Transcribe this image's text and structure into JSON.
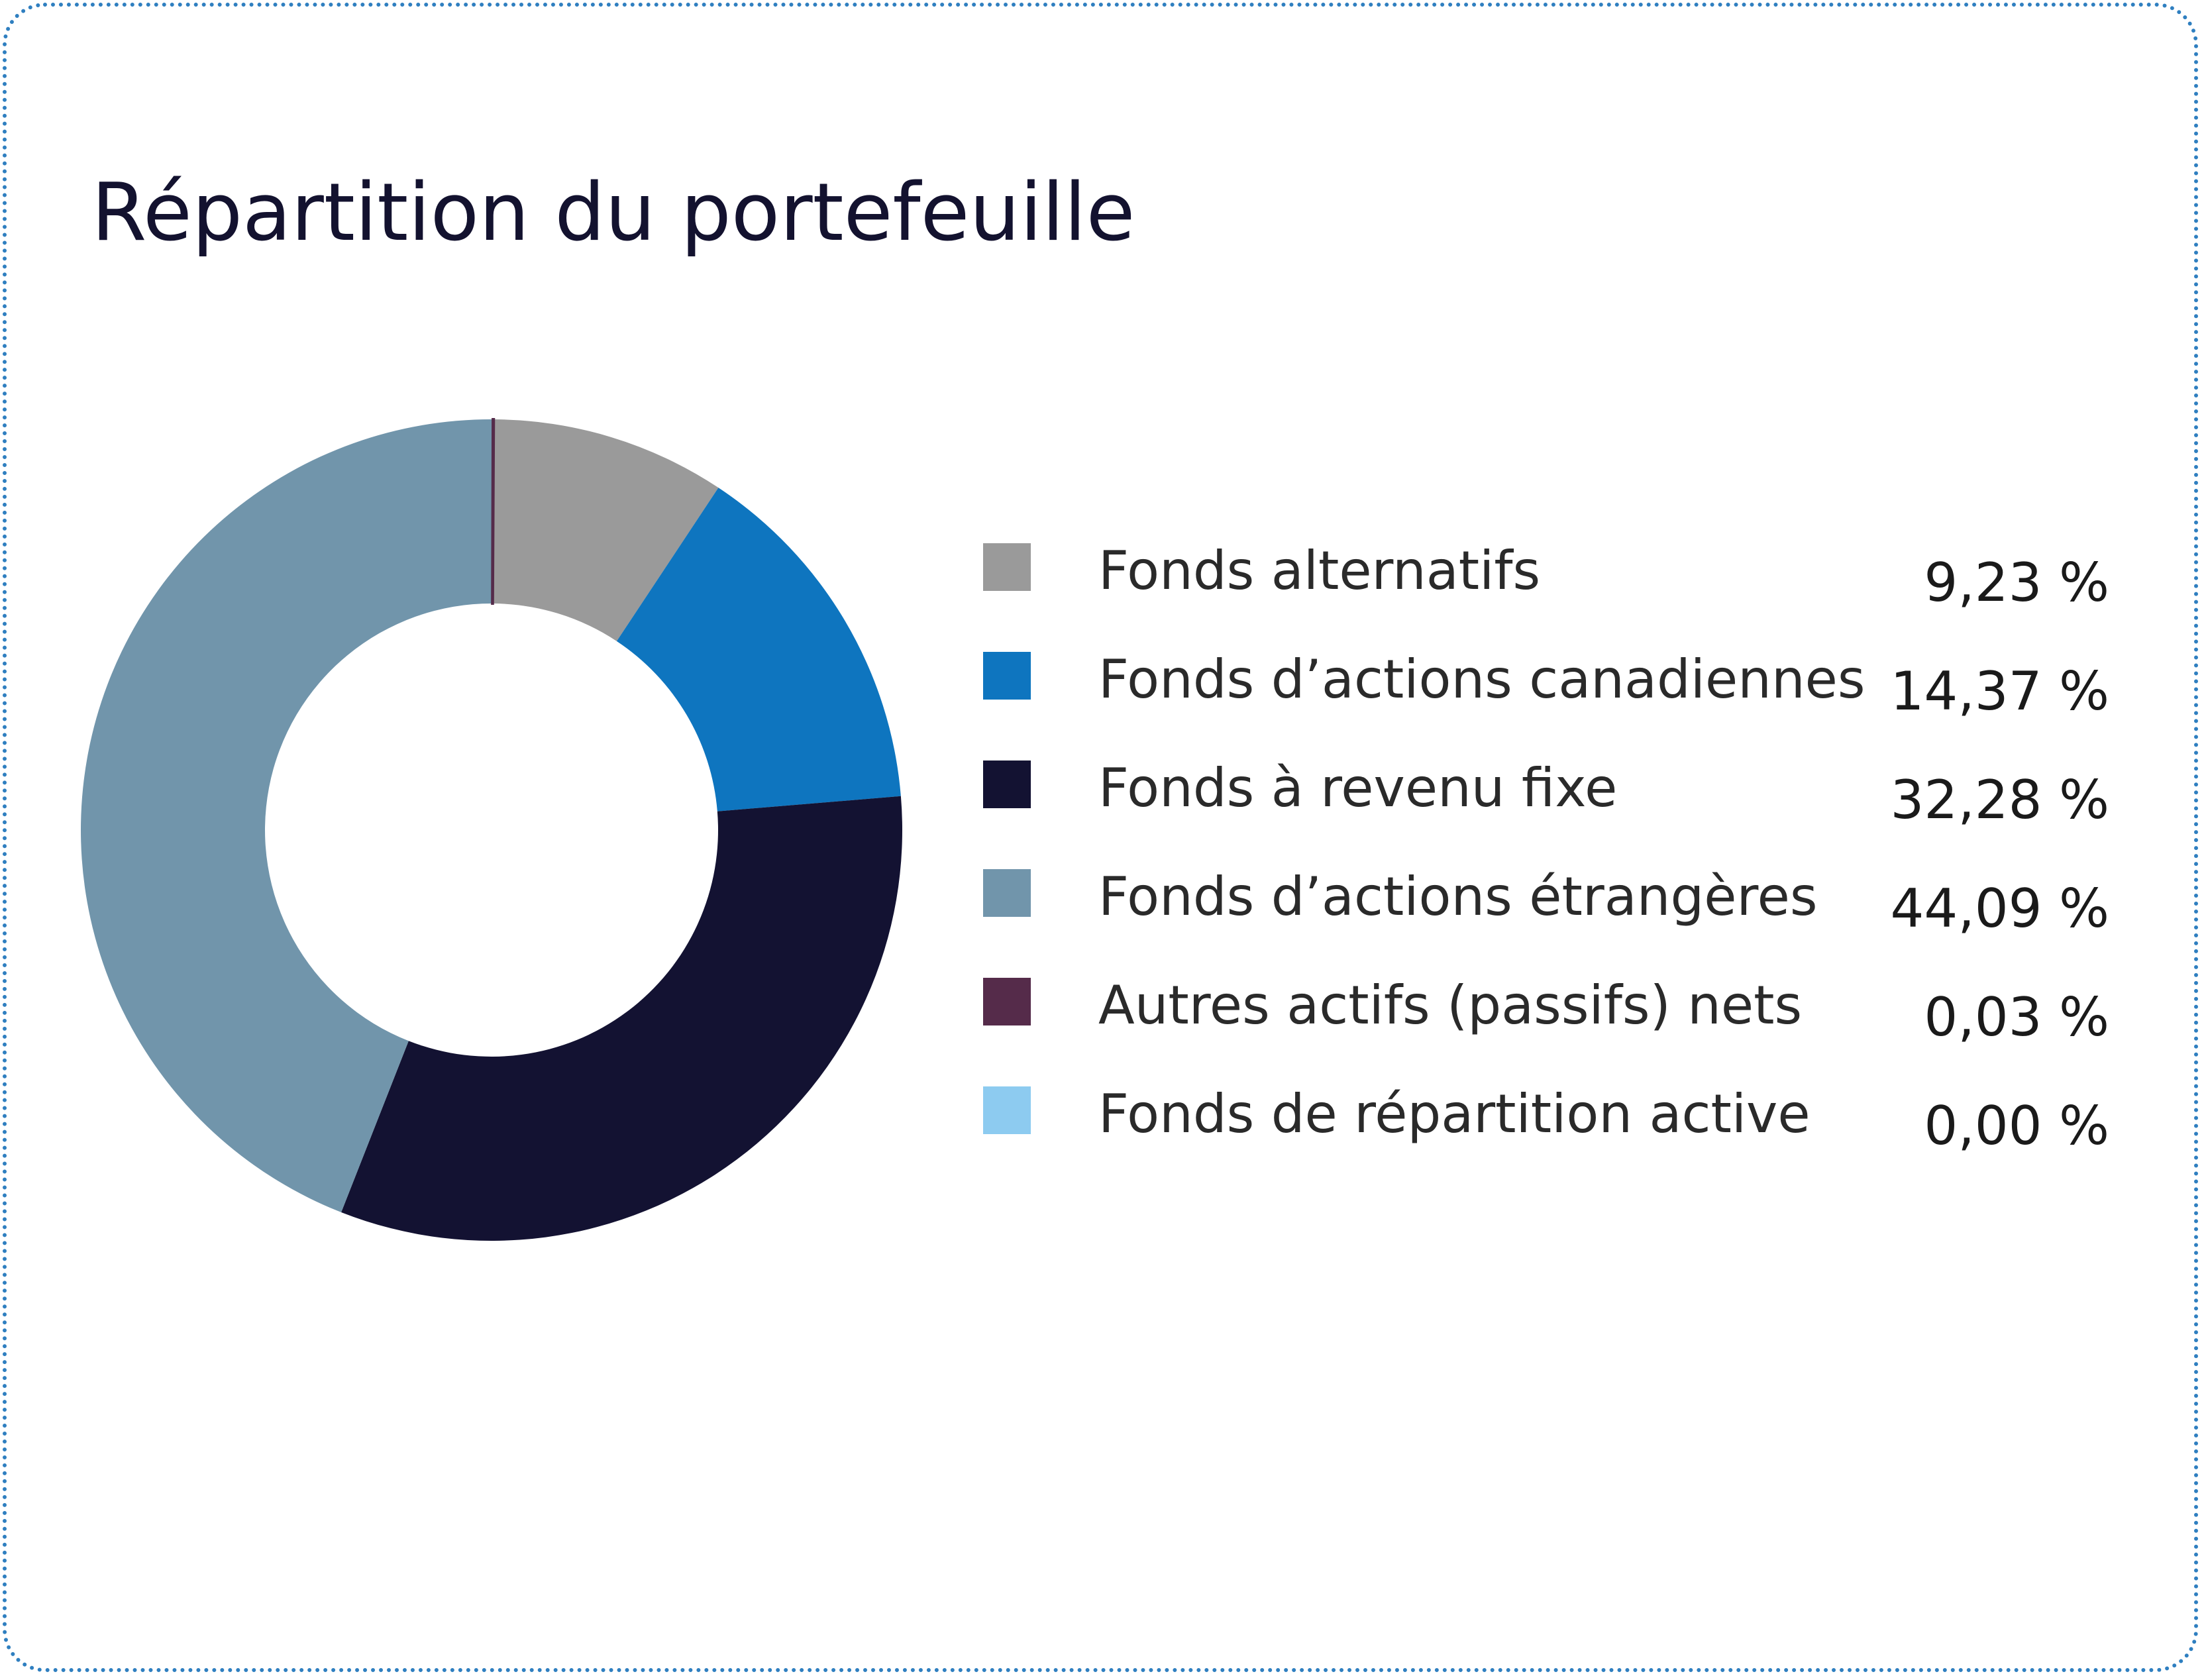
{
  "chart_data": {
    "type": "pie",
    "title": "Répartition du portefeuille",
    "categories": [
      "Fonds alternatifs",
      "Fonds d’actions canadiennes",
      "Fonds à revenu fixe",
      "Fonds d’actions étrangères",
      "Autres actifs (passifs) nets",
      "Fonds de répartition active"
    ],
    "values": [
      9.23,
      14.37,
      32.28,
      44.09,
      0.03,
      0.0
    ],
    "value_labels": [
      "9,23 %",
      "14,37 %",
      "32,28 %",
      "44,09 %",
      "0,03 %",
      "0,00 %"
    ],
    "colors": [
      "#9a9a9a",
      "#0e75bf",
      "#131232",
      "#7195ab",
      "#552b4a",
      "#8dcbf0"
    ],
    "legend_position": "right"
  }
}
